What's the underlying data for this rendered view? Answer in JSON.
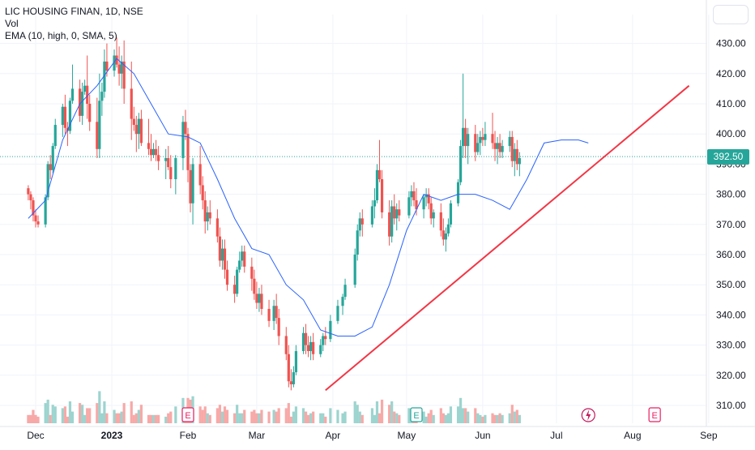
{
  "legend": {
    "symbol": "LIC HOUSING FINAN, 1D, NSE",
    "volume": "Vol",
    "ema": "EMA (10, high, 0, SMA, 5)"
  },
  "last_price": "392.50",
  "colors": {
    "up": "#26a69a",
    "down": "#ef5350",
    "ema": "#2962ff",
    "trendline": "#f23645",
    "vol_up": "#9dd4cf",
    "vol_down": "#f7a9a8"
  },
  "icons": [
    "earnings-icon",
    "dividend-icon"
  ],
  "event_markers": [
    {
      "date": "Feb 1",
      "icon": "earnings-icon",
      "label": "E"
    },
    {
      "date": "May 5",
      "icon": "earnings-icon",
      "label": "E"
    },
    {
      "date": "Jul 14",
      "icon": "dividend-icon",
      "label": ""
    },
    {
      "date": "Aug 10",
      "icon": "earnings-icon",
      "label": "E"
    }
  ],
  "chart_data": {
    "type": "candlestick",
    "title": "LIC HOUSING FINAN, 1D, NSE",
    "y_ticks": [
      "310.00",
      "320.00",
      "330.00",
      "340.00",
      "350.00",
      "360.00",
      "370.00",
      "380.00",
      "390.00",
      "400.00",
      "410.00",
      "420.00",
      "430.00"
    ],
    "x_ticks": [
      "Dec",
      "2023",
      "Feb",
      "Mar",
      "Apr",
      "May",
      "Jun",
      "Jul",
      "Aug",
      "Sep"
    ],
    "ylim": [
      300,
      437
    ],
    "grid": true,
    "series": [
      {
        "name": "EMA (10, high, 0, SMA, 5)",
        "type": "line",
        "points": [
          [
            "Nov 28",
            372
          ],
          [
            "Dec 5",
            378
          ],
          [
            "Dec 12",
            398
          ],
          [
            "Dec 19",
            410
          ],
          [
            "Dec 26",
            416
          ],
          [
            "Jan 3",
            425
          ],
          [
            "Jan 10",
            420
          ],
          [
            "Jan 17",
            410
          ],
          [
            "Jan 24",
            400
          ],
          [
            "Feb 1",
            399
          ],
          [
            "Feb 6",
            397
          ],
          [
            "Feb 13",
            385
          ],
          [
            "Feb 20",
            372
          ],
          [
            "Feb 27",
            362
          ],
          [
            "Mar 6",
            360
          ],
          [
            "Mar 13",
            350
          ],
          [
            "Mar 20",
            345
          ],
          [
            "Mar 27",
            335
          ],
          [
            "Apr 3",
            333
          ],
          [
            "Apr 10",
            333
          ],
          [
            "Apr 17",
            336
          ],
          [
            "Apr 24",
            350
          ],
          [
            "May 1",
            368
          ],
          [
            "May 8",
            380
          ],
          [
            "May 15",
            378
          ],
          [
            "May 22",
            380
          ],
          [
            "May 29",
            380
          ],
          [
            "Jun 5",
            378
          ],
          [
            "Jun 12",
            375
          ],
          [
            "Jun 19",
            385
          ],
          [
            "Jun 26",
            397
          ],
          [
            "Jul 3",
            398
          ],
          [
            "Jul 10",
            398
          ],
          [
            "Jul 14",
            397
          ]
        ]
      },
      {
        "name": "trendline",
        "type": "line",
        "points": [
          [
            "Mar 29",
            315
          ],
          [
            "Aug 24",
            416
          ]
        ]
      }
    ],
    "candles": [
      [
        "Nov 28",
        382,
        383,
        378,
        380
      ],
      [
        "Nov 29",
        380,
        381,
        375,
        378
      ],
      [
        "Nov 30",
        378,
        379,
        371,
        373
      ],
      [
        "Dec 1",
        373,
        375,
        369,
        371
      ],
      [
        "Dec 2",
        371,
        373,
        369,
        370
      ],
      [
        "Dec 5",
        370,
        380,
        369,
        379
      ],
      [
        "Dec 6",
        379,
        391,
        378,
        390
      ],
      [
        "Dec 7",
        390,
        393,
        385,
        388
      ],
      [
        "Dec 8",
        388,
        397,
        387,
        396
      ],
      [
        "Dec 9",
        396,
        405,
        395,
        403
      ],
      [
        "Dec 12",
        403,
        410,
        399,
        409
      ],
      [
        "Dec 13",
        409,
        413,
        400,
        402
      ],
      [
        "Dec 14",
        402,
        404,
        396,
        401
      ],
      [
        "Dec 15",
        401,
        412,
        400,
        411
      ],
      [
        "Dec 16",
        411,
        423,
        410,
        415
      ],
      [
        "Dec 19",
        415,
        418,
        404,
        406
      ],
      [
        "Dec 20",
        406,
        417,
        403,
        414
      ],
      [
        "Dec 21",
        414,
        418,
        413,
        416
      ],
      [
        "Dec 22",
        416,
        426,
        405,
        410
      ],
      [
        "Dec 23",
        410,
        413,
        401,
        404
      ],
      [
        "Dec 26",
        404,
        412,
        392,
        395
      ],
      [
        "Dec 27",
        395,
        420,
        392,
        411
      ],
      [
        "Dec 28",
        411,
        417,
        406,
        414
      ],
      [
        "Dec 29",
        414,
        428,
        412,
        424
      ],
      [
        "Dec 30",
        424,
        430,
        419,
        421
      ],
      [
        "Jan 2",
        421,
        428,
        419,
        426
      ],
      [
        "Jan 3",
        426,
        432,
        422,
        423
      ],
      [
        "Jan 4",
        423,
        429,
        416,
        420
      ],
      [
        "Jan 5",
        420,
        426,
        415,
        424
      ],
      [
        "Jan 6",
        424,
        431,
        410,
        415
      ],
      [
        "Jan 9",
        415,
        424,
        398,
        405
      ],
      [
        "Jan 10",
        405,
        409,
        401,
        403
      ],
      [
        "Jan 11",
        403,
        406,
        394,
        400
      ],
      [
        "Jan 12",
        400,
        407,
        395,
        405
      ],
      [
        "Jan 13",
        405,
        408,
        396,
        397
      ],
      [
        "Jan 16",
        397,
        405,
        393,
        395
      ],
      [
        "Jan 17",
        395,
        400,
        391,
        393
      ],
      [
        "Jan 18",
        393,
        397,
        392,
        395
      ],
      [
        "Jan 19",
        395,
        398,
        391,
        393
      ],
      [
        "Jan 20",
        393,
        396,
        388,
        391
      ],
      [
        "Jan 23",
        391,
        395,
        385,
        392
      ],
      [
        "Jan 24",
        392,
        396,
        388,
        389
      ],
      [
        "Jan 25",
        389,
        393,
        382,
        385
      ],
      [
        "Jan 27",
        385,
        393,
        380,
        392
      ],
      [
        "Jan 30",
        392,
        406,
        388,
        404
      ],
      [
        "Jan 31",
        404,
        408,
        398,
        400
      ],
      [
        "Feb 1",
        400,
        402,
        384,
        388
      ],
      [
        "Feb 2",
        388,
        390,
        374,
        377
      ],
      [
        "Feb 3",
        377,
        392,
        370,
        390
      ],
      [
        "Feb 6",
        390,
        396,
        380,
        383
      ],
      [
        "Feb 7",
        383,
        386,
        375,
        378
      ],
      [
        "Feb 8",
        378,
        381,
        367,
        371
      ],
      [
        "Feb 9",
        371,
        376,
        368,
        374
      ],
      [
        "Feb 10",
        374,
        378,
        370,
        372
      ],
      [
        "Feb 13",
        372,
        375,
        364,
        366
      ],
      [
        "Feb 14",
        366,
        369,
        356,
        358
      ],
      [
        "Feb 15",
        358,
        365,
        355,
        362
      ],
      [
        "Feb 16",
        362,
        365,
        352,
        355
      ],
      [
        "Feb 17",
        355,
        358,
        348,
        350
      ],
      [
        "Feb 20",
        350,
        353,
        344,
        347
      ],
      [
        "Feb 21",
        347,
        356,
        346,
        355
      ],
      [
        "Feb 22",
        355,
        361,
        354,
        358
      ],
      [
        "Feb 23",
        358,
        363,
        356,
        361
      ],
      [
        "Feb 24",
        361,
        363,
        354,
        356
      ],
      [
        "Feb 27",
        356,
        359,
        348,
        352
      ],
      [
        "Feb 28",
        352,
        355,
        345,
        347
      ],
      [
        "Mar 1",
        347,
        351,
        342,
        344
      ],
      [
        "Mar 2",
        344,
        349,
        341,
        347
      ],
      [
        "Mar 3",
        347,
        350,
        340,
        342
      ],
      [
        "Mar 6",
        342,
        345,
        336,
        338
      ],
      [
        "Mar 8",
        338,
        345,
        335,
        343
      ],
      [
        "Mar 9",
        343,
        347,
        337,
        339
      ],
      [
        "Mar 10",
        339,
        342,
        330,
        333
      ],
      [
        "Mar 13",
        333,
        336,
        325,
        327
      ],
      [
        "Mar 14",
        327,
        330,
        316,
        318
      ],
      [
        "Mar 15",
        318,
        322,
        315,
        317
      ],
      [
        "Mar 16",
        317,
        323,
        316,
        321
      ],
      [
        "Mar 17",
        321,
        330,
        320,
        328
      ],
      [
        "Mar 20",
        328,
        336,
        327,
        334
      ],
      [
        "Mar 21",
        334,
        337,
        327,
        330
      ],
      [
        "Mar 22",
        330,
        333,
        326,
        328
      ],
      [
        "Mar 23",
        328,
        333,
        325,
        331
      ],
      [
        "Mar 24",
        331,
        334,
        325,
        327
      ],
      [
        "Mar 27",
        327,
        332,
        326,
        330
      ],
      [
        "Mar 28",
        330,
        334,
        328,
        333
      ],
      [
        "Mar 29",
        333,
        336,
        330,
        332
      ],
      [
        "Mar 31",
        332,
        340,
        331,
        338
      ],
      [
        "Apr 3",
        338,
        345,
        337,
        343
      ],
      [
        "Apr 5",
        343,
        347,
        340,
        346
      ],
      [
        "Apr 6",
        346,
        352,
        345,
        350
      ],
      [
        "Apr 10",
        350,
        362,
        349,
        360
      ],
      [
        "Apr 11",
        360,
        370,
        358,
        368
      ],
      [
        "Apr 12",
        368,
        374,
        366,
        372
      ],
      [
        "Apr 13",
        372,
        375,
        366,
        370
      ],
      [
        "Apr 17",
        370,
        378,
        369,
        376
      ],
      [
        "Apr 18",
        376,
        382,
        372,
        378
      ],
      [
        "Apr 19",
        378,
        390,
        377,
        388
      ],
      [
        "Apr 20",
        388,
        398,
        384,
        385
      ],
      [
        "Apr 21",
        385,
        388,
        372,
        374
      ],
      [
        "Apr 24",
        374,
        378,
        363,
        366
      ],
      [
        "Apr 25",
        366,
        378,
        364,
        376
      ],
      [
        "Apr 26",
        376,
        380,
        370,
        372
      ],
      [
        "Apr 27",
        372,
        377,
        368,
        375
      ],
      [
        "Apr 28",
        375,
        378,
        371,
        373
      ],
      [
        "May 2",
        373,
        381,
        372,
        379
      ],
      [
        "May 3",
        379,
        383,
        376,
        381
      ],
      [
        "May 4",
        381,
        384,
        376,
        378
      ],
      [
        "May 5",
        378,
        382,
        373,
        375
      ],
      [
        "May 8",
        375,
        380,
        372,
        379
      ],
      [
        "May 9",
        379,
        382,
        376,
        380
      ],
      [
        "May 10",
        380,
        382,
        375,
        377
      ],
      [
        "May 11",
        377,
        379,
        370,
        372
      ],
      [
        "May 12",
        372,
        375,
        369,
        374
      ],
      [
        "May 15",
        374,
        377,
        366,
        368
      ],
      [
        "May 16",
        368,
        372,
        363,
        365
      ],
      [
        "May 17",
        365,
        369,
        361,
        367
      ],
      [
        "May 18",
        367,
        372,
        366,
        370
      ],
      [
        "May 19",
        370,
        378,
        369,
        377
      ],
      [
        "May 22",
        377,
        385,
        376,
        384
      ],
      [
        "May 23",
        384,
        398,
        383,
        396
      ],
      [
        "May 24",
        396,
        420,
        392,
        402
      ],
      [
        "May 25",
        402,
        405,
        392,
        396
      ],
      [
        "May 26",
        396,
        402,
        390,
        400
      ],
      [
        "May 29",
        400,
        403,
        391,
        394
      ],
      [
        "May 30",
        394,
        400,
        393,
        397
      ],
      [
        "May 31",
        397,
        401,
        393,
        399
      ],
      [
        "Jun 1",
        399,
        402,
        396,
        398
      ],
      [
        "Jun 2",
        398,
        404,
        396,
        400
      ],
      [
        "Jun 5",
        400,
        407,
        395,
        397
      ],
      [
        "Jun 6",
        397,
        401,
        391,
        395
      ],
      [
        "Jun 7",
        395,
        399,
        390,
        397
      ],
      [
        "Jun 8",
        397,
        400,
        392,
        394
      ],
      [
        "Jun 9",
        394,
        398,
        392,
        396
      ],
      [
        "Jun 12",
        396,
        401,
        394,
        399
      ],
      [
        "Jun 13",
        399,
        401,
        389,
        391
      ],
      [
        "Jun 14",
        391,
        397,
        386,
        395
      ],
      [
        "Jun 15",
        395,
        398,
        388,
        390
      ],
      [
        "Jun 16",
        390,
        394,
        386,
        392
      ]
    ]
  }
}
